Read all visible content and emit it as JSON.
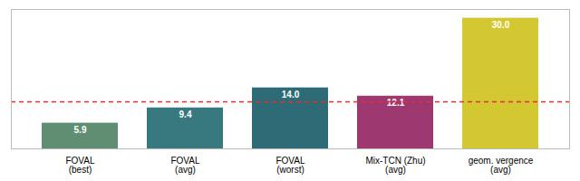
{
  "chart_data": {
    "type": "bar",
    "categories": [
      "FOVAL\n(best)",
      "FOVAL\n(avg)",
      "FOVAL\n(worst)",
      "Mix-TCN (Zhu)\n(avg)",
      "geom. vergence\n(avg)"
    ],
    "values": [
      5.9,
      9.4,
      14.0,
      12.1,
      30.0
    ],
    "value_labels": [
      "5.9",
      "9.4",
      "14.0",
      "12.1",
      "30.0"
    ],
    "colors": [
      "#5f8e72",
      "#38787f",
      "#2d6b76",
      "#9e3870",
      "#d4c832"
    ],
    "data_labels": true,
    "ylim": [
      0,
      32
    ],
    "yticks": [],
    "tick_labels": "x",
    "grid": false,
    "lines": [
      {
        "y": 10.8,
        "color": "#e03030",
        "line_style": "dashed"
      }
    ]
  }
}
